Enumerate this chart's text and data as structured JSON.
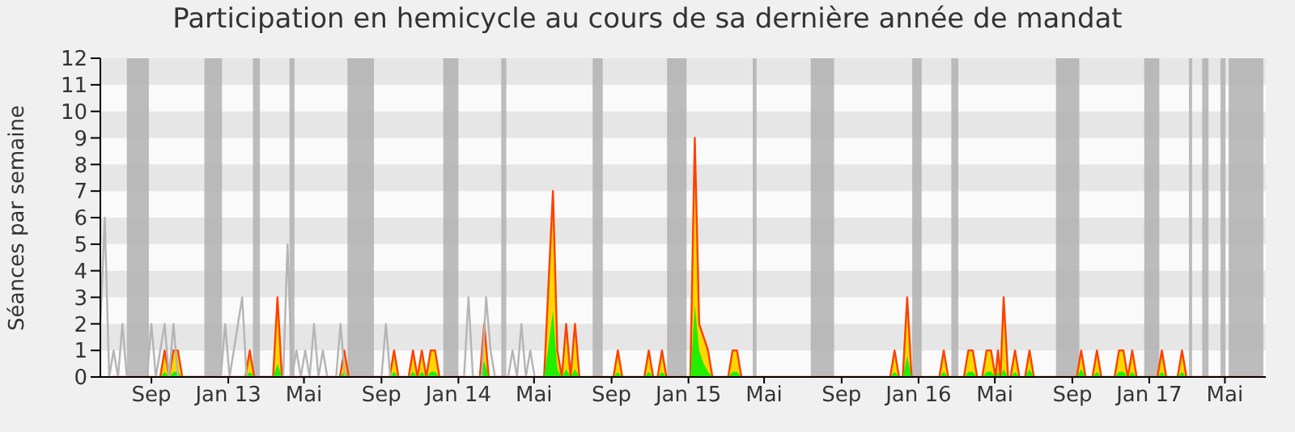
{
  "chart_data": {
    "type": "area",
    "title": "Participation en hemicycle au cours de sa dernière année de mandat",
    "ylabel": "Séances par semaine",
    "xlim": [
      "2012-06-12",
      "2017-07-05"
    ],
    "xticks": [
      {
        "value": "2012-09-01",
        "label": "Sep"
      },
      {
        "value": "2013-01-01",
        "label": "Jan 13"
      },
      {
        "value": "2013-05-01",
        "label": "Mai"
      },
      {
        "value": "2013-09-01",
        "label": "Sep"
      },
      {
        "value": "2014-01-01",
        "label": "Jan 14"
      },
      {
        "value": "2014-05-01",
        "label": "Mai"
      },
      {
        "value": "2014-09-01",
        "label": "Sep"
      },
      {
        "value": "2015-01-01",
        "label": "Jan 15"
      },
      {
        "value": "2015-05-01",
        "label": "Mai"
      },
      {
        "value": "2015-09-01",
        "label": "Sep"
      },
      {
        "value": "2016-01-01",
        "label": "Jan 16"
      },
      {
        "value": "2016-05-01",
        "label": "Mai"
      },
      {
        "value": "2016-09-01",
        "label": "Sep"
      },
      {
        "value": "2017-01-01",
        "label": "Jan 17"
      },
      {
        "value": "2017-05-01",
        "label": "Mai"
      }
    ],
    "ylim": [
      0,
      12
    ],
    "yticks": [
      0,
      1,
      2,
      3,
      4,
      5,
      6,
      7,
      8,
      9,
      10,
      11,
      12
    ],
    "legend": false,
    "bands": [
      {
        "axis": "y",
        "from": 1,
        "to": 2,
        "color": "#e6e6e6"
      },
      {
        "axis": "y",
        "from": 3,
        "to": 4,
        "color": "#e6e6e6"
      },
      {
        "axis": "y",
        "from": 5,
        "to": 6,
        "color": "#e6e6e6"
      },
      {
        "axis": "y",
        "from": 7,
        "to": 8,
        "color": "#e6e6e6"
      },
      {
        "axis": "y",
        "from": 9,
        "to": 10,
        "color": "#e6e6e6"
      },
      {
        "axis": "y",
        "from": 11,
        "to": 12,
        "color": "#e6e6e6"
      },
      {
        "axis": "x",
        "from": "2012-07-24",
        "to": "2012-08-28",
        "color": "#b0b0b0"
      },
      {
        "axis": "x",
        "from": "2012-11-24",
        "to": "2012-12-22",
        "color": "#b0b0b0"
      },
      {
        "axis": "x",
        "from": "2013-02-09",
        "to": "2013-02-20",
        "color": "#b0b0b0"
      },
      {
        "axis": "x",
        "from": "2013-04-08",
        "to": "2013-04-16",
        "color": "#b0b0b0"
      },
      {
        "axis": "x",
        "from": "2013-07-09",
        "to": "2013-08-20",
        "color": "#b0b0b0"
      },
      {
        "axis": "x",
        "from": "2013-12-08",
        "to": "2014-01-01",
        "color": "#b0b0b0"
      },
      {
        "axis": "x",
        "from": "2014-03-10",
        "to": "2014-03-18",
        "color": "#b0b0b0"
      },
      {
        "axis": "x",
        "from": "2014-08-02",
        "to": "2014-08-18",
        "color": "#b0b0b0"
      },
      {
        "axis": "x",
        "from": "2014-11-28",
        "to": "2014-12-29",
        "color": "#b0b0b0"
      },
      {
        "axis": "x",
        "from": "2015-04-13",
        "to": "2015-04-19",
        "color": "#b0b0b0"
      },
      {
        "axis": "x",
        "from": "2015-07-14",
        "to": "2015-08-20",
        "color": "#b0b0b0"
      },
      {
        "axis": "x",
        "from": "2015-12-22",
        "to": "2016-01-06",
        "color": "#b0b0b0"
      },
      {
        "axis": "x",
        "from": "2016-02-22",
        "to": "2016-03-04",
        "color": "#b0b0b0"
      },
      {
        "axis": "x",
        "from": "2016-08-06",
        "to": "2016-09-12",
        "color": "#b0b0b0"
      },
      {
        "axis": "x",
        "from": "2016-12-24",
        "to": "2017-01-17",
        "color": "#b0b0b0"
      },
      {
        "axis": "x",
        "from": "2017-03-05",
        "to": "2017-03-10",
        "color": "#b0b0b0"
      },
      {
        "axis": "x",
        "from": "2017-03-26",
        "to": "2017-04-05",
        "color": "#b0b0b0"
      },
      {
        "axis": "x",
        "from": "2017-04-24",
        "to": "2017-05-02",
        "color": "#b0b0b0"
      },
      {
        "axis": "x",
        "from": "2017-05-07",
        "to": "2017-07-01",
        "color": "#b0b0b0"
      }
    ],
    "x": [
      "2012-07-01",
      "2012-09-15",
      "2012-09-22",
      "2012-09-29",
      "2012-10-06",
      "2012-10-13",
      "2012-10-20",
      "2013-01-28",
      "2013-02-04",
      "2013-02-11",
      "2013-03-13",
      "2013-03-20",
      "2013-03-27",
      "2013-06-27",
      "2013-07-04",
      "2013-07-11",
      "2013-09-14",
      "2013-09-21",
      "2013-09-28",
      "2013-10-14",
      "2013-10-21",
      "2013-10-28",
      "2013-11-04",
      "2013-11-11",
      "2013-11-18",
      "2013-11-25",
      "2013-12-02",
      "2014-02-04",
      "2014-02-11",
      "2014-02-18",
      "2014-05-17",
      "2014-05-24",
      "2014-05-31",
      "2014-06-07",
      "2014-06-14",
      "2014-06-21",
      "2014-06-28",
      "2014-07-05",
      "2014-07-12",
      "2014-09-04",
      "2014-09-11",
      "2014-09-18",
      "2014-10-23",
      "2014-10-30",
      "2014-11-06",
      "2014-11-13",
      "2014-11-20",
      "2014-11-27",
      "2015-01-04",
      "2015-01-11",
      "2015-01-18",
      "2015-01-25",
      "2015-02-01",
      "2015-02-08",
      "2015-03-05",
      "2015-03-12",
      "2015-03-19",
      "2015-03-26",
      "2015-11-17",
      "2015-11-24",
      "2015-12-01",
      "2015-12-07",
      "2015-12-14",
      "2015-12-21",
      "2016-02-03",
      "2016-02-10",
      "2016-02-17",
      "2016-03-13",
      "2016-03-20",
      "2016-03-27",
      "2016-04-03",
      "2016-04-11",
      "2016-04-18",
      "2016-04-25",
      "2016-05-02",
      "2016-05-06",
      "2016-05-10",
      "2016-05-15",
      "2016-05-22",
      "2016-05-26",
      "2016-06-02",
      "2016-06-09",
      "2016-06-18",
      "2016-06-25",
      "2016-07-02",
      "2016-09-08",
      "2016-09-15",
      "2016-09-22",
      "2016-10-03",
      "2016-10-10",
      "2016-10-17",
      "2016-11-07",
      "2016-11-14",
      "2016-11-21",
      "2016-11-28",
      "2016-12-05",
      "2016-12-12",
      "2017-01-14",
      "2017-01-21",
      "2017-01-28",
      "2017-02-15",
      "2017-02-22",
      "2017-03-01",
      "2017-06-25"
    ],
    "series": [
      {
        "type": "line",
        "color": "#b4b4b4",
        "x": [
          "2012-06-12",
          "2012-06-19",
          "2012-06-26",
          "2012-07-03",
          "2012-07-10",
          "2012-07-17",
          "2012-07-24",
          "2012-08-25",
          "2012-09-01",
          "2012-09-08",
          "2012-09-22",
          "2012-09-29",
          "2012-10-06",
          "2012-10-13",
          "2012-12-20",
          "2012-12-27",
          "2013-01-03",
          "2013-01-23",
          "2013-01-30",
          "2013-03-29",
          "2013-04-05",
          "2013-04-12",
          "2013-04-19",
          "2013-04-26",
          "2013-05-03",
          "2013-05-10",
          "2013-05-17",
          "2013-05-24",
          "2013-05-31",
          "2013-06-07",
          "2013-06-21",
          "2013-06-28",
          "2013-07-05",
          "2013-09-01",
          "2013-09-08",
          "2013-09-15",
          "2014-01-10",
          "2014-01-17",
          "2014-01-24",
          "2014-02-07",
          "2014-02-14",
          "2014-02-21",
          "2014-02-28",
          "2014-03-21",
          "2014-03-28",
          "2014-04-04",
          "2014-04-11",
          "2014-04-18",
          "2014-04-25",
          "2014-05-02"
        ],
        "values": [
          2,
          6,
          0,
          1,
          0,
          2,
          0,
          0,
          2,
          0,
          2,
          0,
          2,
          0,
          0,
          2,
          0,
          3,
          0,
          0,
          5,
          0,
          1,
          0,
          1,
          0,
          2,
          0,
          1,
          0,
          0,
          2,
          0,
          0,
          2,
          0,
          0,
          3,
          0,
          0,
          3,
          1,
          0,
          0,
          1,
          0,
          2,
          0,
          1,
          0
        ]
      },
      {
        "type": "area",
        "color": "#ffd700",
        "values": [
          0,
          0,
          1,
          0,
          1,
          1,
          0,
          0,
          1,
          0,
          0,
          3,
          0,
          0,
          1,
          0,
          0,
          1,
          0,
          0,
          1,
          0,
          1,
          0,
          1,
          1,
          0,
          0,
          2,
          0,
          0,
          3.5,
          7,
          1,
          0,
          2,
          0,
          2,
          0,
          0,
          1,
          0,
          0,
          1,
          0,
          0,
          1,
          0,
          0,
          9,
          2,
          1.5,
          1,
          0,
          0,
          1,
          1,
          0,
          0,
          1,
          0,
          0,
          3,
          0,
          0,
          1,
          0,
          0,
          1,
          1,
          0,
          0,
          1,
          1,
          0,
          1,
          0,
          3,
          0,
          0,
          1,
          0,
          0,
          1,
          0,
          0,
          1,
          0,
          0,
          1,
          0,
          0,
          1,
          1,
          0,
          1,
          0,
          0,
          1,
          0,
          0,
          1,
          0,
          0
        ]
      },
      {
        "type": "area",
        "color": "#22ee00",
        "values": [
          0,
          0,
          0.2,
          0,
          0.2,
          0.2,
          0,
          0,
          0.2,
          0,
          0,
          0.5,
          0,
          0,
          0.2,
          0,
          0,
          0.2,
          0,
          0,
          0.2,
          0,
          0.2,
          0,
          0.2,
          0.2,
          0,
          0,
          0.6,
          0,
          0,
          1.2,
          2.5,
          0.3,
          0,
          0.3,
          0,
          0.3,
          0,
          0,
          0.2,
          0,
          0,
          0.2,
          0,
          0,
          0.2,
          0,
          0,
          2.7,
          1,
          0.5,
          0.2,
          0,
          0,
          0.2,
          0.2,
          0,
          0,
          0.2,
          0,
          0,
          0.8,
          0,
          0,
          0.2,
          0,
          0,
          0.2,
          0.2,
          0,
          0,
          0.2,
          0.2,
          0,
          0.2,
          0,
          0.3,
          0,
          0,
          0.2,
          0,
          0,
          0.3,
          0,
          0,
          0.3,
          0,
          0,
          0.2,
          0,
          0,
          0.2,
          0.2,
          0,
          0.2,
          0,
          0,
          0.2,
          0,
          0,
          0.2,
          0,
          0
        ]
      }
    ]
  }
}
